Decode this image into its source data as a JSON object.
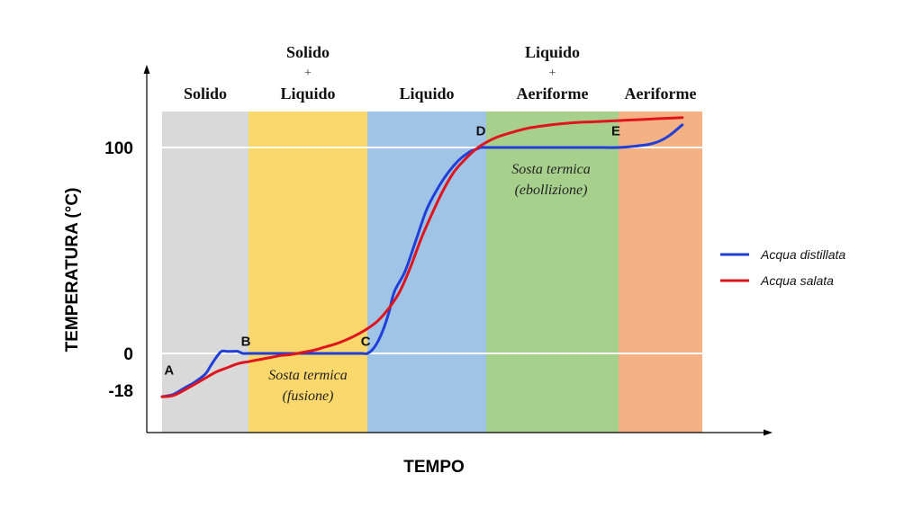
{
  "chart_data": {
    "type": "line",
    "xlabel": "TEMPO",
    "ylabel": "TEMPERATURA (°C)",
    "yticks": [
      "100",
      "0",
      "-18"
    ],
    "ylim": [
      -38,
      158
    ],
    "xlim": [
      0,
      100
    ],
    "grid": "horizontal lines at 0 and 100",
    "legend_position": "right",
    "phases": [
      {
        "lines": [
          "Solido"
        ],
        "x_range": [
          0,
          16
        ],
        "color": "#d9d9d9"
      },
      {
        "lines": [
          "Solido",
          "+",
          "Liquido"
        ],
        "x_range": [
          16,
          38
        ],
        "color": "#fbd86c"
      },
      {
        "lines": [
          "Liquido"
        ],
        "x_range": [
          38,
          60
        ],
        "color": "#a0c4e6"
      },
      {
        "lines": [
          "Liquido",
          "+",
          "Aeriforme"
        ],
        "x_range": [
          60,
          84.5
        ],
        "color": "#a8d08d"
      },
      {
        "lines": [
          "Aeriforme"
        ],
        "x_range": [
          84.5,
          100
        ],
        "color": "#f4b183"
      }
    ],
    "points": [
      {
        "label": "A",
        "x": 1.3,
        "y": -8
      },
      {
        "label": "B",
        "x": 15.5,
        "y": 6
      },
      {
        "label": "C",
        "x": 37.7,
        "y": 6
      },
      {
        "label": "D",
        "x": 59,
        "y": 108
      },
      {
        "label": "E",
        "x": 84,
        "y": 108
      }
    ],
    "annotations": [
      {
        "lines": [
          "Sosta termica",
          "(fusione)"
        ],
        "x": 27,
        "y": [
          -10,
          -20
        ]
      },
      {
        "lines": [
          "Sosta termica",
          "(ebollizione)"
        ],
        "x": 72,
        "y": [
          90,
          80
        ]
      }
    ],
    "series": [
      {
        "name": "Acqua distillata",
        "color": "#1f3fd8",
        "x": [
          0,
          2,
          4,
          6,
          8,
          9,
          10,
          11,
          12,
          13,
          14,
          15,
          16,
          20,
          25,
          30,
          34,
          36,
          37,
          38,
          39,
          40,
          41,
          42,
          43,
          45,
          47,
          49,
          51,
          53,
          55,
          57,
          58,
          59,
          60,
          62,
          66,
          70,
          75,
          80,
          84.5,
          86,
          88,
          90,
          92,
          94,
          96,
          98,
          96.3
        ],
        "y": [
          -21,
          -20,
          -17,
          -14,
          -10,
          -6,
          -2,
          1,
          1,
          1,
          1,
          0,
          0,
          0,
          0,
          0,
          0,
          0,
          0,
          0,
          2,
          6,
          12,
          20,
          30,
          40,
          55,
          70,
          80,
          88,
          94,
          98,
          99,
          100,
          100,
          100,
          100,
          100,
          100,
          100,
          100,
          100,
          100,
          100,
          100,
          100,
          100,
          100,
          100
        ],
        "x_sorted_tail": [
          84.5,
          87,
          90,
          92,
          94,
          96.3
        ],
        "y_sorted_tail": [
          100,
          100.5,
          101.5,
          103,
          106,
          111
        ]
      },
      {
        "name": "Acqua salata",
        "color": "#e0141c",
        "x": [
          0,
          2,
          4,
          6,
          8,
          10,
          12,
          14,
          16,
          18,
          20,
          22,
          24,
          26,
          28,
          30,
          32,
          34,
          36,
          38,
          40,
          42,
          44,
          46,
          48,
          50,
          52,
          54,
          56,
          58,
          60,
          62,
          65,
          68,
          72,
          76,
          80,
          84,
          88,
          92,
          96.3
        ],
        "y": [
          -21,
          -20.5,
          -18,
          -15,
          -12,
          -9,
          -7,
          -5,
          -4,
          -3,
          -2,
          -1,
          -0.5,
          0.5,
          1.5,
          3,
          4.5,
          6.5,
          9,
          12,
          16,
          22,
          30,
          42,
          56,
          68,
          79,
          88,
          94,
          99,
          102.5,
          105,
          107.5,
          109.5,
          111,
          112,
          112.5,
          113,
          113.5,
          114,
          114.5
        ]
      }
    ]
  }
}
